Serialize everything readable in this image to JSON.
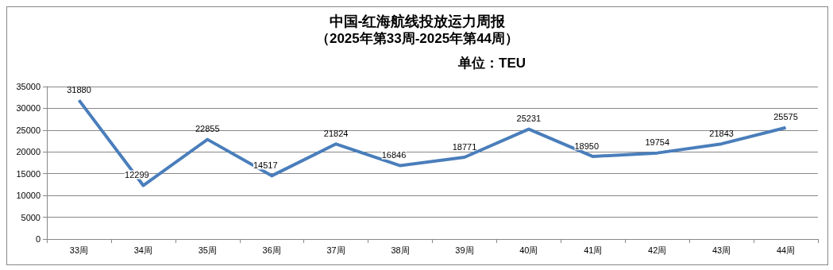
{
  "chart_data": {
    "type": "line",
    "title": "中国-红海航线投放运力周报",
    "subtitle": "（2025年第33周-2025年第44周）",
    "annotations": [
      "单位：TEU"
    ],
    "categories": [
      "33周",
      "34周",
      "35周",
      "36周",
      "37周",
      "38周",
      "39周",
      "40周",
      "41周",
      "42周",
      "43周",
      "44周"
    ],
    "series": [
      {
        "color": "#4a7ebb",
        "values": [
          31880,
          12299,
          22855,
          14517,
          21824,
          16846,
          18771,
          25231,
          18950,
          19754,
          21843,
          25575
        ]
      }
    ],
    "ylim": [
      0,
      35000
    ],
    "yticks": [
      0,
      5000,
      10000,
      15000,
      20000,
      25000,
      30000,
      35000
    ],
    "grid": "y",
    "marker": "none",
    "line_style": "solid",
    "data_labels": true
  }
}
